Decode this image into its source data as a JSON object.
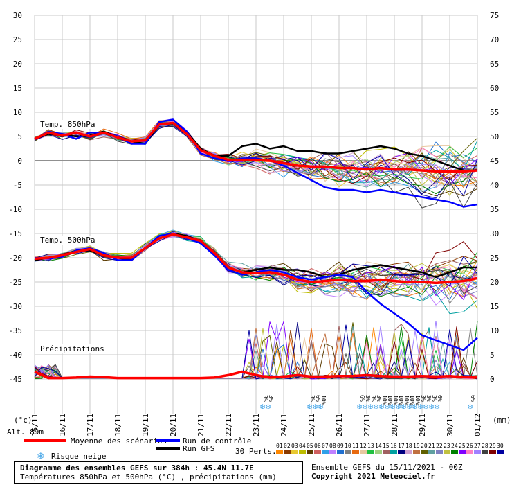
{
  "chart_data": {
    "type": "line",
    "left_axis_unit": "(°c)",
    "right_axis_unit": "(mm)",
    "altitude_label": "Alt. 89m",
    "left_ticks": [
      30,
      25,
      20,
      15,
      10,
      5,
      0,
      -5,
      -10,
      -15,
      -20,
      -25,
      -30,
      -35,
      -40,
      -45
    ],
    "right_ticks": [
      75,
      70,
      65,
      60,
      55,
      50,
      45,
      40,
      35,
      30,
      25,
      20,
      15,
      10,
      5,
      0
    ],
    "ylim_left": [
      -45,
      30
    ],
    "ylim_right": [
      0,
      75
    ],
    "x_date_labels": [
      "15/11",
      "16/11",
      "17/11",
      "18/11",
      "19/11",
      "20/11",
      "21/11",
      "22/11",
      "23/11",
      "24/11",
      "25/11",
      "26/11",
      "27/11",
      "28/11",
      "29/11",
      "30/11",
      "01/12"
    ],
    "panel_labels": [
      "Temp. 850hPa",
      "Temp. 500hPa",
      "Précipitations"
    ],
    "series": [
      {
        "name": "Moyenne des scénarios",
        "panel": "850",
        "color": "#ff0000",
        "x": [
          0,
          0.5,
          1,
          1.5,
          2,
          2.5,
          3,
          3.5,
          4,
          4.5,
          5,
          5.5,
          6,
          6.5,
          7,
          7.5,
          8,
          8.5,
          9,
          9.5,
          10,
          10.5,
          11,
          11.5,
          12,
          12.5,
          13,
          13.5,
          14,
          14.5,
          15,
          15.5,
          16
        ],
        "values": [
          4.5,
          5.8,
          5.2,
          5.8,
          5.0,
          5.8,
          4.8,
          4.0,
          4.2,
          7.5,
          7.8,
          5.5,
          2.2,
          1.0,
          0.2,
          0.2,
          0.2,
          0.0,
          -0.5,
          -1.0,
          -1.2,
          -1.2,
          -1.5,
          -1.5,
          -1.8,
          -1.5,
          -1.8,
          -1.8,
          -2.0,
          -2.2,
          -2.2,
          -2.2,
          -2.0
        ]
      },
      {
        "name": "Run de contrôle",
        "panel": "850",
        "color": "#0000ff",
        "x": [
          0,
          0.5,
          1,
          1.5,
          2,
          2.5,
          3,
          3.5,
          4,
          4.5,
          5,
          5.5,
          6,
          6.5,
          7,
          7.5,
          8,
          8.5,
          9,
          9.5,
          10,
          10.5,
          11,
          11.5,
          12,
          12.5,
          13,
          13.5,
          14,
          14.5,
          15,
          15.5,
          16
        ],
        "values": [
          4.5,
          6.0,
          5.5,
          4.5,
          5.8,
          5.8,
          5.0,
          3.5,
          3.5,
          8.0,
          8.5,
          6.0,
          1.5,
          0.5,
          0.0,
          0.5,
          0.5,
          0.0,
          -1.0,
          -2.5,
          -4.0,
          -5.5,
          -6.0,
          -6.0,
          -6.5,
          -6.0,
          -6.5,
          -7.0,
          -7.5,
          -8.0,
          -8.5,
          -9.5,
          -9.0
        ]
      },
      {
        "name": "Run GFS",
        "panel": "850",
        "color": "#000000",
        "x": [
          0,
          0.5,
          1,
          1.5,
          2,
          2.5,
          3,
          3.5,
          4,
          4.5,
          5,
          5.5,
          6,
          6.5,
          7,
          7.5,
          8,
          8.5,
          9,
          9.5,
          10,
          10.5,
          11,
          11.5,
          12,
          12.5,
          13,
          13.5,
          14,
          14.5,
          15,
          15.5,
          16
        ],
        "values": [
          4.5,
          5.5,
          5.5,
          5.0,
          5.2,
          6.0,
          5.0,
          4.0,
          3.5,
          7.5,
          7.8,
          6.0,
          2.5,
          1.0,
          1.0,
          3.0,
          3.5,
          2.5,
          3.0,
          2.0,
          2.0,
          1.5,
          1.5,
          2.0,
          2.5,
          3.0,
          2.5,
          1.5,
          1.0,
          0.0,
          -1.0,
          -2.0,
          -2.0
        ]
      },
      {
        "name": "Moyenne des scénarios",
        "panel": "500",
        "color": "#ff0000",
        "x": [
          0,
          0.5,
          1,
          1.5,
          2,
          2.5,
          3,
          3.5,
          4,
          4.5,
          5,
          5.5,
          6,
          6.5,
          7,
          7.5,
          8,
          8.5,
          9,
          9.5,
          10,
          10.5,
          11,
          11.5,
          12,
          12.5,
          13,
          13.5,
          14,
          14.5,
          15,
          15.5,
          16
        ],
        "values": [
          -20.2,
          -20.0,
          -19.5,
          -18.8,
          -18.2,
          -19.5,
          -20.0,
          -20.0,
          -18.0,
          -16.0,
          -15.2,
          -15.8,
          -16.5,
          -19.0,
          -22.0,
          -23.0,
          -23.2,
          -23.0,
          -23.5,
          -24.5,
          -25.0,
          -24.8,
          -24.5,
          -24.8,
          -24.8,
          -24.5,
          -24.8,
          -25.0,
          -25.0,
          -25.2,
          -25.0,
          -24.8,
          -24.2
        ]
      },
      {
        "name": "Run de contrôle",
        "panel": "500",
        "color": "#0000ff",
        "x": [
          0,
          0.5,
          1,
          1.5,
          2,
          2.5,
          3,
          3.5,
          4,
          4.5,
          5,
          5.5,
          6,
          6.5,
          7,
          7.5,
          8,
          8.5,
          9,
          9.5,
          10,
          10.5,
          11,
          11.5,
          12,
          12.5,
          13,
          13.5,
          14,
          14.5,
          15,
          15.5,
          16
        ],
        "values": [
          -20.0,
          -20.2,
          -19.8,
          -18.5,
          -18.0,
          -19.0,
          -20.5,
          -20.5,
          -18.0,
          -15.5,
          -15.0,
          -16.0,
          -17.0,
          -19.5,
          -22.5,
          -23.5,
          -23.0,
          -22.5,
          -23.0,
          -24.0,
          -24.5,
          -24.0,
          -23.5,
          -24.0,
          -27.0,
          -29.5,
          -31.5,
          -33.5,
          -36.0,
          -37.0,
          -38.0,
          -39.0,
          -36.5
        ]
      },
      {
        "name": "Run GFS",
        "panel": "500",
        "color": "#000000",
        "x": [
          0,
          0.5,
          1,
          1.5,
          2,
          2.5,
          3,
          3.5,
          4,
          4.5,
          5,
          5.5,
          6,
          6.5,
          7,
          7.5,
          8,
          8.5,
          9,
          9.5,
          10,
          10.5,
          11,
          11.5,
          12,
          12.5,
          13,
          13.5,
          14,
          14.5,
          15,
          15.5,
          16
        ],
        "values": [
          -20.5,
          -20.0,
          -19.5,
          -18.5,
          -18.5,
          -19.5,
          -20.0,
          -20.5,
          -18.0,
          -16.0,
          -15.0,
          -15.5,
          -16.5,
          -19.0,
          -22.0,
          -23.0,
          -22.5,
          -22.0,
          -22.5,
          -22.5,
          -23.0,
          -24.0,
          -23.5,
          -22.5,
          -22.0,
          -21.5,
          -22.0,
          -22.5,
          -23.0,
          -24.0,
          -23.0,
          -22.0,
          -22.0
        ]
      },
      {
        "name": "Moyenne des scénarios",
        "panel": "precip",
        "color": "#ff0000",
        "x": [
          0,
          0.5,
          1,
          1.5,
          2,
          2.5,
          3,
          3.5,
          4,
          4.5,
          5,
          5.5,
          6,
          6.5,
          7,
          7.5,
          8,
          8.5,
          9,
          9.5,
          10,
          10.5,
          11,
          11.5,
          12,
          12.5,
          13,
          13.5,
          14,
          14.5,
          15,
          15.5,
          16
        ],
        "values": [
          1.5,
          0.2,
          0.2,
          0.3,
          0.5,
          0.4,
          0.2,
          0.2,
          0.2,
          0.2,
          0.2,
          0.2,
          0.2,
          0.3,
          0.8,
          1.5,
          0.8,
          0.3,
          0.5,
          0.8,
          0.5,
          0.5,
          0.6,
          0.6,
          0.8,
          0.6,
          0.5,
          0.5,
          0.6,
          0.5,
          0.6,
          0.4,
          0.3
        ]
      }
    ],
    "snow_risk": [
      {
        "x": 8.2,
        "pct": [
          "3%",
          "3%"
        ]
      },
      {
        "x": 9.9,
        "pct": [
          "3%",
          "6%",
          "10%"
        ]
      },
      {
        "x": 11.7,
        "pct": [
          "6%",
          "3%",
          "3%",
          "3%",
          "10%",
          "10%",
          "10%",
          "10%",
          "10%",
          "10%",
          "10%",
          "3%",
          "3%",
          "3%",
          "6%"
        ]
      },
      {
        "x": 15.7,
        "pct": [
          "6%"
        ]
      }
    ],
    "perturbation_colors": [
      "#ff8800",
      "#8a3a00",
      "#e8c830",
      "#bdbd00",
      "#5a3a00",
      "#d06060",
      "#30a0e8",
      "#c080ff",
      "#2070d0",
      "#808080",
      "#e86a10",
      "#e8c8a0",
      "#20c040",
      "#a0d080",
      "#a06060",
      "#00a0a0",
      "#000080",
      "#d0a0d0",
      "#c07040",
      "#606000",
      "#60a0a0",
      "#8080c0",
      "#c0c040",
      "#008000",
      "#8000ff",
      "#ff80c0",
      "#a080ff",
      "#404040",
      "#800000",
      "#0000a0"
    ],
    "perturbation_labels": [
      "01",
      "02",
      "03",
      "04",
      "05",
      "06",
      "07",
      "08",
      "09",
      "10",
      "11",
      "12",
      "13",
      "14",
      "15",
      "16",
      "17",
      "18",
      "19",
      "20",
      "21",
      "22",
      "23",
      "24",
      "25",
      "26",
      "27",
      "28",
      "29",
      "30"
    ]
  },
  "legend": {
    "mean_label": "Moyenne des scénarios",
    "control_label": "Run de contrôle",
    "gfs_label": "Run GFS",
    "snow_label": "Risque neige",
    "perts_label": "30 Perts.",
    "mean_color": "#ff0000",
    "control_color": "#0000ff",
    "gfs_color": "#000000",
    "snow_icon": "snowflake-icon"
  },
  "footer": {
    "title": "Diagramme des ensembles GEFS sur 384h : 45.4N 11.7E",
    "subtitle": "Températures 850hPa et 500hPa (°C) , précipitations (mm)",
    "run": "Ensemble GEFS du 15/11/2021 - 00Z",
    "copyright": "Copyright 2021 Meteociel.fr"
  }
}
